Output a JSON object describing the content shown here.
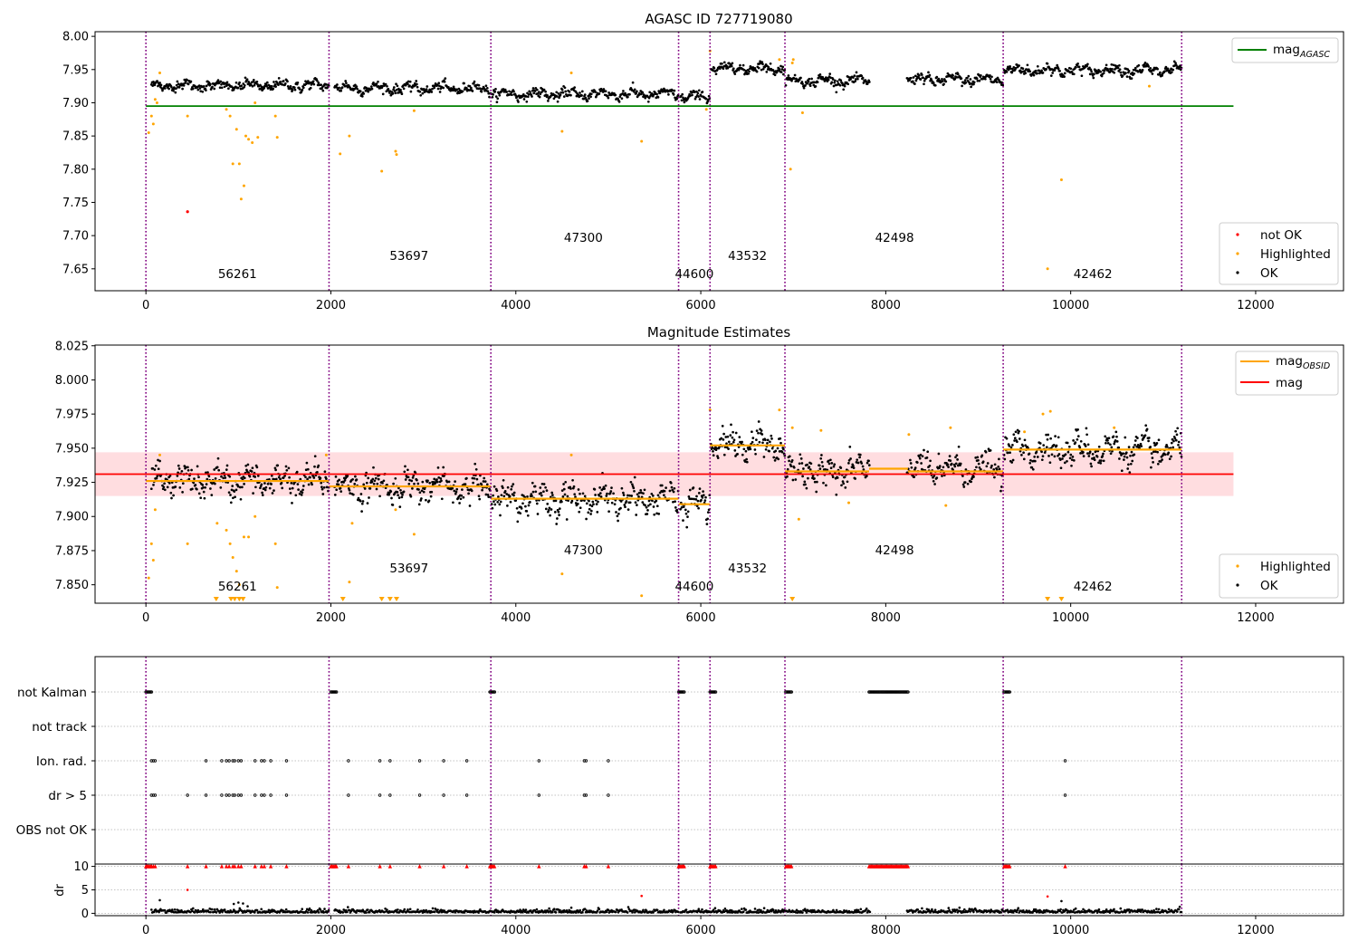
{
  "chart_data": [
    {
      "type": "scatter",
      "title": "AGASC ID 727719080",
      "xlim": [
        -550,
        12950
      ],
      "ylim": [
        7.617,
        8.007
      ],
      "x_ticks": [
        0,
        2000,
        4000,
        6000,
        8000,
        10000,
        12000
      ],
      "y_ticks": [
        7.65,
        7.7,
        7.75,
        7.8,
        7.85,
        7.9,
        7.95,
        8.0
      ],
      "y_tick_labels": [
        "7.65",
        "7.70",
        "7.75",
        "7.80",
        "7.85",
        "7.90",
        "7.95",
        "8.00"
      ],
      "reference_line": {
        "name": "mag",
        "subscript": "AGASC",
        "y": 7.895,
        "x_range": [
          0,
          11760
        ],
        "color": "#008000"
      },
      "legend_top": "top-right",
      "legend_bottom": [
        {
          "label": "not OK",
          "color": "#ff0000"
        },
        {
          "label": "Highlighted",
          "color": "#ffa500"
        },
        {
          "label": "OK",
          "color": "#000000"
        }
      ],
      "highlighted_points": [
        [
          30,
          7.855
        ],
        [
          60,
          7.88
        ],
        [
          80,
          7.868
        ],
        [
          100,
          7.905
        ],
        [
          120,
          7.9
        ],
        [
          150,
          7.945
        ],
        [
          450,
          7.88
        ],
        [
          870,
          7.89
        ],
        [
          910,
          7.88
        ],
        [
          940,
          7.808
        ],
        [
          980,
          7.86
        ],
        [
          1010,
          7.808
        ],
        [
          1030,
          7.755
        ],
        [
          1060,
          7.775
        ],
        [
          1080,
          7.85
        ],
        [
          1110,
          7.845
        ],
        [
          1150,
          7.84
        ],
        [
          1180,
          7.9
        ],
        [
          1210,
          7.848
        ],
        [
          1400,
          7.88
        ],
        [
          1420,
          7.848
        ],
        [
          2100,
          7.823
        ],
        [
          2200,
          7.85
        ],
        [
          2550,
          7.797
        ],
        [
          2700,
          7.827
        ],
        [
          2710,
          7.822
        ],
        [
          2900,
          7.888
        ],
        [
          4500,
          7.857
        ],
        [
          4600,
          7.945
        ],
        [
          5360,
          7.842
        ],
        [
          6060,
          7.89
        ],
        [
          6100,
          7.978
        ],
        [
          6850,
          7.965
        ],
        [
          6970,
          7.8
        ],
        [
          6990,
          7.96
        ],
        [
          7000,
          7.965
        ],
        [
          7100,
          7.885
        ],
        [
          9750,
          7.65
        ],
        [
          9900,
          7.784
        ],
        [
          10850,
          7.925
        ]
      ],
      "notok_points": [
        [
          450,
          7.736
        ]
      ]
    },
    {
      "type": "scatter",
      "title": "Magnitude Estimates",
      "xlim": [
        -550,
        12950
      ],
      "ylim": [
        7.8365,
        8.0255
      ],
      "x_ticks": [
        0,
        2000,
        4000,
        6000,
        8000,
        10000,
        12000
      ],
      "y_ticks": [
        7.85,
        7.875,
        7.9,
        7.925,
        7.95,
        7.975,
        8.0,
        8.025
      ],
      "y_tick_labels": [
        "7.850",
        "7.875",
        "7.900",
        "7.925",
        "7.950",
        "7.975",
        "8.000",
        "8.025"
      ],
      "mag_line": {
        "name": "mag",
        "y": 7.931,
        "x_range": [
          -550,
          11760
        ],
        "color": "#ff0000",
        "band": [
          7.915,
          7.947
        ]
      },
      "mag_obsid_name": "mag",
      "mag_obsid_subscript": "OBSID",
      "legend_top": "top-right",
      "legend_bottom": [
        {
          "label": "Highlighted",
          "color": "#ffa500"
        },
        {
          "label": "OK",
          "color": "#000000"
        }
      ],
      "highlighted_points": [
        [
          30,
          7.855
        ],
        [
          60,
          7.88
        ],
        [
          80,
          7.868
        ],
        [
          100,
          7.905
        ],
        [
          150,
          7.945
        ],
        [
          450,
          7.88
        ],
        [
          770,
          7.895
        ],
        [
          870,
          7.89
        ],
        [
          910,
          7.88
        ],
        [
          940,
          7.87
        ],
        [
          980,
          7.86
        ],
        [
          1010,
          7.85
        ],
        [
          1060,
          7.885
        ],
        [
          1110,
          7.885
        ],
        [
          1180,
          7.9
        ],
        [
          1400,
          7.88
        ],
        [
          1420,
          7.848
        ],
        [
          1950,
          7.945
        ],
        [
          2200,
          7.852
        ],
        [
          2230,
          7.895
        ],
        [
          2700,
          7.905
        ],
        [
          2900,
          7.887
        ],
        [
          4500,
          7.858
        ],
        [
          4600,
          7.945
        ],
        [
          5360,
          7.842
        ],
        [
          6100,
          7.978
        ],
        [
          6850,
          7.978
        ],
        [
          6990,
          7.965
        ],
        [
          7060,
          7.898
        ],
        [
          7300,
          7.963
        ],
        [
          7600,
          7.91
        ],
        [
          8250,
          7.96
        ],
        [
          8650,
          7.908
        ],
        [
          8700,
          7.965
        ],
        [
          9500,
          7.962
        ],
        [
          9700,
          7.975
        ],
        [
          9780,
          7.977
        ],
        [
          10470,
          7.965
        ]
      ],
      "below_range_markers_x": [
        760,
        920,
        960,
        1010,
        1050,
        2130,
        2550,
        2640,
        2710,
        6990,
        9750,
        9900
      ]
    },
    {
      "type": "scatter",
      "title": "",
      "xlim": [
        -550,
        12950
      ],
      "ylim": [
        -0.5,
        10.5
      ],
      "x_ticks": [
        0,
        2000,
        4000,
        6000,
        8000,
        10000,
        12000
      ],
      "y_ticks": [
        0,
        5,
        10
      ],
      "y_tick_labels": [
        "0",
        "5",
        "10"
      ],
      "ylabel": "dr",
      "flag_rows": [
        "not Kalman",
        "not track",
        "Ion. rad.",
        "dr > 5",
        "OBS not OK"
      ],
      "not_kalman_spans": [
        [
          0,
          60
        ],
        [
          2000,
          60
        ],
        [
          3720,
          50
        ],
        [
          5760,
          60
        ],
        [
          6100,
          60
        ],
        [
          6920,
          60
        ],
        [
          7820,
          420
        ],
        [
          9280,
          60
        ]
      ],
      "ion_rad_x": [
        60,
        80,
        100,
        650,
        820,
        870,
        900,
        940,
        960,
        1000,
        1030,
        1180,
        1250,
        1280,
        1350,
        1520,
        2190,
        2530,
        2640,
        2960,
        3220,
        3470,
        4250,
        4740,
        4760,
        5000,
        9940
      ],
      "dr_gt5_x": [
        60,
        80,
        100,
        450,
        650,
        820,
        870,
        900,
        940,
        960,
        1000,
        1030,
        1180,
        1250,
        1280,
        1350,
        1520,
        2190,
        2530,
        2640,
        2960,
        3220,
        3470,
        4250,
        4740,
        4760,
        5000,
        9940
      ],
      "dr_outliers": [
        [
          450,
          5.0
        ],
        [
          5360,
          3.7
        ],
        [
          9750,
          3.6
        ],
        [
          9900,
          2.6
        ],
        [
          950,
          2.0
        ],
        [
          1000,
          2.3
        ],
        [
          1050,
          2.1
        ],
        [
          1100,
          1.5
        ],
        [
          150,
          2.8
        ],
        [
          4600,
          1.2
        ]
      ]
    }
  ],
  "segments": {
    "boundaries": [
      0,
      1980,
      3730,
      5760,
      6100,
      6910,
      9270,
      11200
    ],
    "obsids": [
      "56261",
      "53697",
      "47300",
      "44600",
      "43532",
      "42498",
      "42462"
    ],
    "label_x": [
      990,
      2845,
      4730,
      5930,
      6505,
      8095,
      10240
    ],
    "label_level": [
      0,
      1,
      2,
      0,
      1,
      2,
      0
    ],
    "mean_mag": [
      7.926,
      7.922,
      7.913,
      7.909,
      7.952,
      7.933,
      7.935,
      7.949
    ],
    "mag_segments": [
      [
        0,
        1980,
        7.926
      ],
      [
        1980,
        3730,
        7.922
      ],
      [
        3730,
        5760,
        7.913
      ],
      [
        5760,
        6100,
        7.909
      ],
      [
        6100,
        6910,
        7.952
      ],
      [
        6910,
        7820,
        7.933
      ],
      [
        7820,
        8240,
        7.935
      ],
      [
        8240,
        9270,
        7.933
      ],
      [
        9270,
        11200,
        7.949
      ]
    ],
    "data_ranges": [
      [
        60,
        1980
      ],
      [
        2040,
        3730
      ],
      [
        3740,
        5760
      ],
      [
        5780,
        6100
      ],
      [
        6110,
        6910
      ],
      [
        6920,
        7830
      ],
      [
        8230,
        9270
      ],
      [
        9280,
        11200
      ]
    ],
    "colors": {
      "ok": "#000000",
      "highlighted": "#ffa500",
      "not_ok": "#ff0000",
      "boundary": "#800080",
      "mag_obsid": "#ffa500",
      "band": "#ffdde0"
    }
  }
}
